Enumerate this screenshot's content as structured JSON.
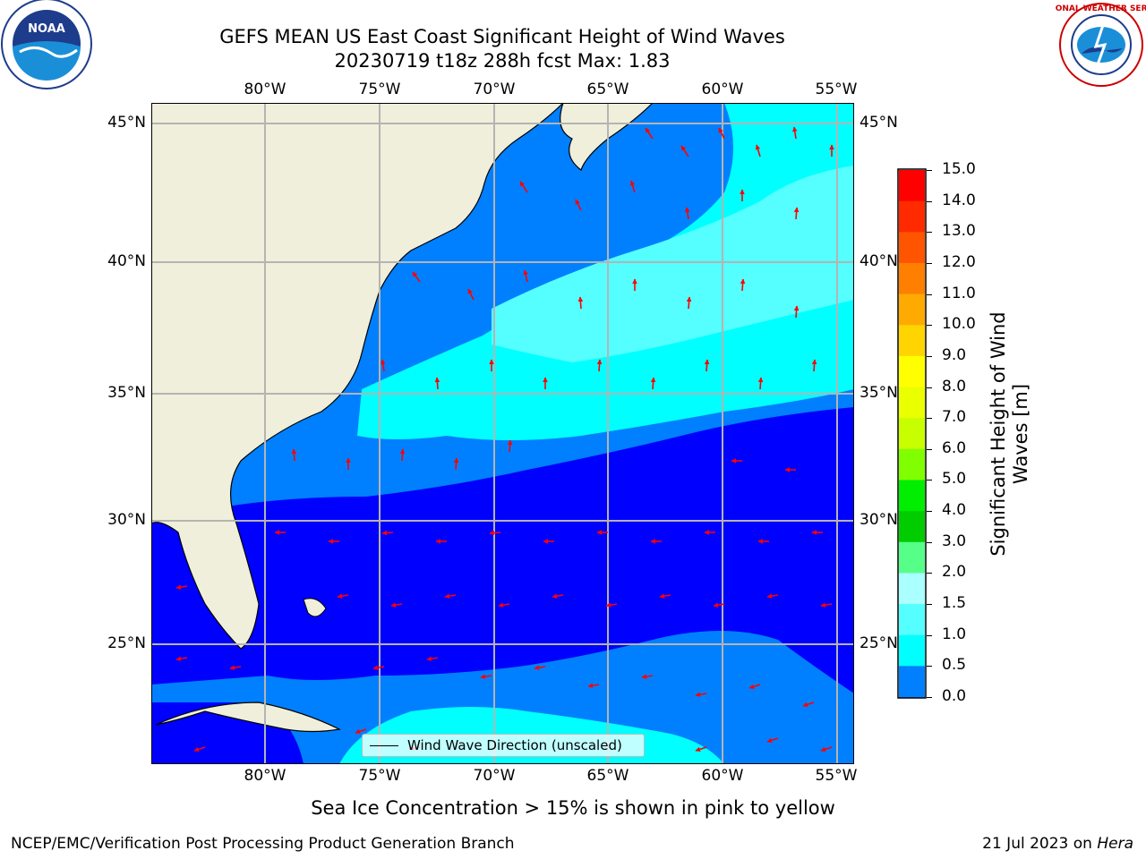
{
  "title_line1": "GEFS MEAN US East Coast Significant Height of Wind Waves",
  "title_line2": "20230719 t18z 288h fcst   Max: 1.83",
  "map": {
    "lon_labels": [
      "80°W",
      "75°W",
      "70°W",
      "65°W",
      "60°W",
      "55°W"
    ],
    "lat_labels": [
      "45°N",
      "40°N",
      "35°N",
      "30°N",
      "25°N"
    ],
    "legend_label": "Wind Wave Direction (unscaled)"
  },
  "colorbar": {
    "label": "Significant Height of Wind Waves [m]",
    "ticks": [
      "15.0",
      "14.0",
      "13.0",
      "12.0",
      "11.0",
      "10.0",
      "9.0",
      "8.0",
      "7.0",
      "6.0",
      "5.0",
      "4.0",
      "3.0",
      "2.0",
      "1.5",
      "1.0",
      "0.5",
      "0.0"
    ],
    "colors": [
      "#ff0000",
      "#ff2a00",
      "#ff5500",
      "#ff7f00",
      "#ffaa00",
      "#ffd400",
      "#ffff00",
      "#eaff00",
      "#c8ff00",
      "#80ff00",
      "#00ee00",
      "#00cc00",
      "#55ff88",
      "#aaffff",
      "#55ffff",
      "#00ffff",
      "#0080ff",
      "#0000ff"
    ]
  },
  "logos": {
    "noaa": "NOAA",
    "nws": "NATIONAL WEATHER SERVICE"
  },
  "note": "Sea Ice Concentration > 15% is shown in pink to yellow",
  "footer_left": "NCEP/EMC/Verification Post Processing Product Generation Branch",
  "footer_date": "21 Jul 2023 on ",
  "footer_host": "Hera"
}
